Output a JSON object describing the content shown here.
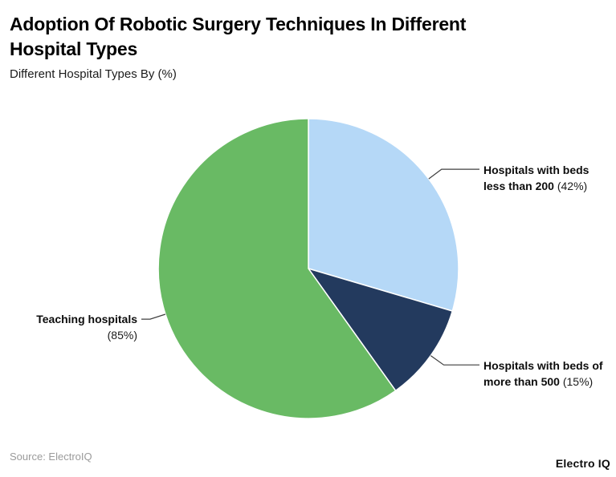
{
  "chart_data": {
    "type": "pie",
    "title": "Adoption Of Robotic Surgery Techniques In Different Hospital Types",
    "subtitle": "Different Hospital Types By (%)",
    "unit": "%",
    "rotation": "clockwise-from-top",
    "legend_position": "outside-callouts",
    "slices": [
      {
        "name": "beds-less-than-200",
        "label": "Hospitals with beds less than 200",
        "label_lines": [
          "Hospitals with beds",
          "less than 200"
        ],
        "pct_label": "(42%)",
        "value": 42,
        "color": "#b5d8f7"
      },
      {
        "name": "beds-more-than-500",
        "label": "Hospitals with beds of more than 500",
        "label_lines": [
          "Hospitals with beds of",
          "more than 500"
        ],
        "pct_label": "(15%)",
        "value": 15,
        "color": "#233a5e"
      },
      {
        "name": "teaching-hospitals",
        "label": "Teaching hospitals",
        "label_lines": [
          "Teaching hospitals"
        ],
        "pct_label": "(85%)",
        "value": 85,
        "color": "#69ba64"
      }
    ],
    "leader_line_color": "#3f3f3f",
    "slice_border_color": "#ffffff"
  },
  "footer": {
    "source": "Source: ElectroIQ",
    "brand": "Electro IQ"
  }
}
